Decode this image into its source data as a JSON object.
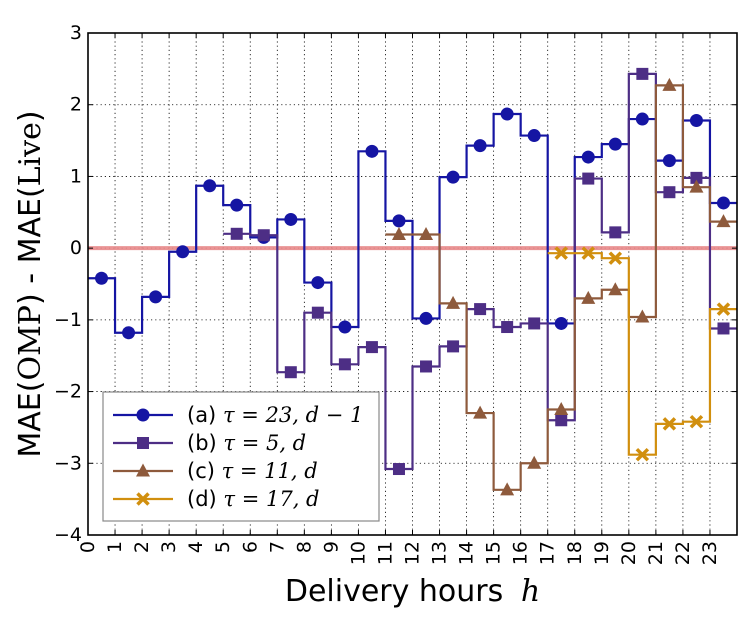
{
  "chart_data": {
    "type": "line",
    "step": "post",
    "xlabel": "Delivery hours",
    "xlabel_math": "h",
    "ylabel_parts": [
      "MAE(",
      "OMP",
      ") - MAE(",
      "Live",
      ")"
    ],
    "xlim": [
      0,
      24
    ],
    "ylim": [
      -4,
      3
    ],
    "xticks": [
      0,
      1,
      2,
      3,
      4,
      5,
      6,
      7,
      8,
      9,
      10,
      11,
      12,
      13,
      14,
      15,
      16,
      17,
      18,
      19,
      20,
      21,
      22,
      23
    ],
    "xtick_labels": [
      "0",
      "1",
      "2",
      "3",
      "4",
      "5",
      "6",
      "7",
      "8",
      "9",
      "10",
      "11",
      "12",
      "13",
      "14",
      "15",
      "16",
      "17",
      "18",
      "19",
      "20",
      "21",
      "22",
      "23"
    ],
    "yticks": [
      -4,
      -3,
      -2,
      -1,
      0,
      1,
      2,
      3
    ],
    "ytick_labels": [
      "−4",
      "−3",
      "−2",
      "−1",
      "0",
      "1",
      "2",
      "3"
    ],
    "grid": true,
    "legend_position": "lower-left",
    "reference_line": {
      "y": 0,
      "color": "#e8898a"
    },
    "series": [
      {
        "name": "(a) τ = 23, d − 1",
        "label_prefix": "(a) ",
        "label_math": "τ = 23, d − 1",
        "color": "#1515a3",
        "marker": "circle",
        "x": [
          0,
          1,
          2,
          3,
          4,
          5,
          6,
          7,
          8,
          9,
          10,
          11,
          12,
          13,
          14,
          15,
          16,
          17,
          18,
          19,
          20,
          21,
          22,
          23
        ],
        "values": [
          -0.42,
          -1.18,
          -0.68,
          -0.05,
          0.87,
          0.6,
          0.15,
          0.4,
          -0.48,
          -1.1,
          1.35,
          0.38,
          -0.98,
          0.99,
          1.43,
          1.87,
          1.57,
          -1.05,
          1.27,
          1.45,
          1.8,
          1.22,
          1.78,
          0.63
        ]
      },
      {
        "name": "(b) τ = 5, d",
        "label_prefix": "(b) ",
        "label_math": "τ = 5, d",
        "color": "#4d2e85",
        "marker": "square",
        "x": [
          5,
          6,
          7,
          8,
          9,
          10,
          11,
          12,
          13,
          14,
          15,
          16,
          17,
          18,
          19,
          20,
          21,
          22,
          23
        ],
        "values": [
          0.2,
          0.18,
          -1.73,
          -0.9,
          -1.62,
          -1.38,
          -3.08,
          -1.65,
          -1.37,
          -0.85,
          -1.1,
          -1.05,
          -2.4,
          0.97,
          0.22,
          2.43,
          0.78,
          0.98,
          -1.12
        ]
      },
      {
        "name": "(c) τ = 11, d",
        "label_prefix": "(c) ",
        "label_math": "τ = 11, d",
        "color": "#8e5a3c",
        "marker": "triangle",
        "x": [
          11,
          12,
          13,
          14,
          15,
          16,
          17,
          18,
          19,
          20,
          21,
          22,
          23
        ],
        "values": [
          0.19,
          0.19,
          -0.77,
          -2.3,
          -3.37,
          -3.0,
          -2.25,
          -0.7,
          -0.58,
          -0.96,
          2.27,
          0.85,
          0.37
        ]
      },
      {
        "name": "(d) τ = 17, d",
        "label_prefix": "(d) ",
        "label_math": "τ = 17, d",
        "color": "#d18f0e",
        "marker": "x",
        "x": [
          17,
          18,
          19,
          20,
          21,
          22,
          23
        ],
        "values": [
          -0.07,
          -0.07,
          -0.14,
          -2.88,
          -2.45,
          -2.42,
          -0.85
        ]
      }
    ]
  }
}
